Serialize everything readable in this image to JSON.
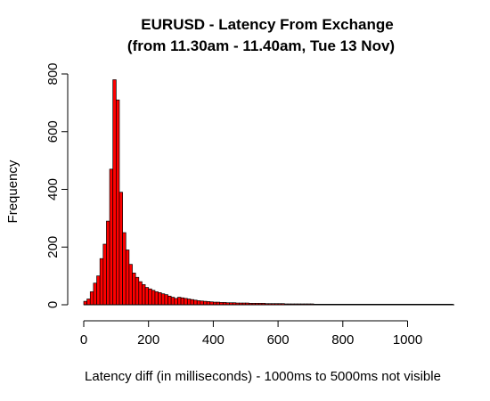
{
  "chart_data": {
    "type": "bar",
    "title": "EURUSD - Latency From Exchange",
    "subtitle": "(from 11.30am - 11.40am, Tue 13 Nov)",
    "xlabel": "Latency diff (in milliseconds) - 1000ms to 5000ms not visible",
    "ylabel": "Frequency",
    "bar_color": "#ff0000",
    "border_color": "#000000",
    "bin_width": 10,
    "bin_start": 0,
    "xlim": [
      0,
      1140
    ],
    "ylim": [
      0,
      800
    ],
    "x_ticks": [
      0,
      200,
      400,
      600,
      800,
      1000
    ],
    "y_ticks": [
      0,
      200,
      400,
      600,
      800
    ],
    "grid": false,
    "values": [
      12,
      20,
      45,
      75,
      100,
      160,
      210,
      290,
      470,
      780,
      710,
      390,
      250,
      190,
      140,
      110,
      95,
      80,
      70,
      60,
      55,
      50,
      45,
      42,
      38,
      35,
      30,
      26,
      22,
      26,
      24,
      22,
      20,
      18,
      16,
      14,
      13,
      12,
      11,
      10,
      9,
      9,
      8,
      8,
      7,
      7,
      7,
      6,
      6,
      6,
      6,
      5,
      5,
      5,
      5,
      5,
      4,
      4,
      4,
      4,
      4,
      4,
      3,
      3,
      3,
      3,
      3,
      3,
      3,
      3,
      3,
      2,
      2,
      2,
      2,
      2,
      2,
      2,
      2,
      2,
      2,
      2,
      2,
      2,
      2,
      2,
      2,
      2,
      2,
      2,
      2,
      2,
      2,
      2,
      2,
      2,
      2,
      2,
      2,
      2,
      2,
      2,
      2,
      2,
      2,
      2,
      2,
      2,
      2,
      2,
      2,
      2,
      2,
      2
    ]
  }
}
